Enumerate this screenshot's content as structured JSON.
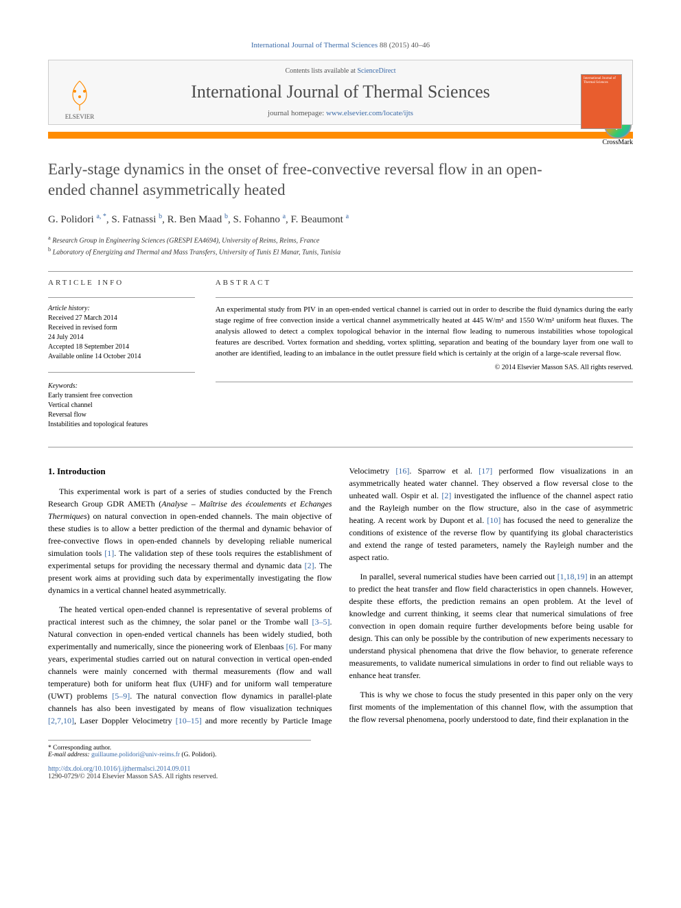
{
  "citation": {
    "journal": "International Journal of Thermal Sciences",
    "vol": "88 (2015) 40–46"
  },
  "banner": {
    "contents_line_pre": "Contents lists available at ",
    "contents_link": "ScienceDirect",
    "journal_title": "International Journal of Thermal Sciences",
    "homepage_pre": "journal homepage: ",
    "homepage_url": "www.elsevier.com/locate/ijts",
    "publisher_name": "ELSEVIER",
    "cover_text": "International Journal of Thermal Sciences"
  },
  "crossmark_label": "CrossMark",
  "article": {
    "title": "Early-stage dynamics in the onset of free-convective reversal flow in an open-ended channel asymmetrically heated",
    "authors_html": "G. Polidori <sup>a, *</sup>, S. Fatnassi <sup>b</sup>, R. Ben Maad <sup>b</sup>, S. Fohanno <sup>a</sup>, F. Beaumont <sup>a</sup>",
    "affiliations": [
      {
        "sup": "a",
        "text": "Research Group in Engineering Sciences (GRESPI EA4694), University of Reims, Reims, France"
      },
      {
        "sup": "b",
        "text": "Laboratory of Energizing and Thermal and Mass Transfers, University of Tunis El Manar, Tunis, Tunisia"
      }
    ]
  },
  "info": {
    "section_label": "ARTICLE INFO",
    "history_label": "Article history:",
    "history": [
      "Received 27 March 2014",
      "Received in revised form",
      "24 July 2014",
      "Accepted 18 September 2014",
      "Available online 14 October 2014"
    ],
    "keywords_label": "Keywords:",
    "keywords": [
      "Early transient free convection",
      "Vertical channel",
      "Reversal flow",
      "Instabilities and topological features"
    ]
  },
  "abstract": {
    "section_label": "ABSTRACT",
    "text": "An experimental study from PIV in an open-ended vertical channel is carried out in order to describe the fluid dynamics during the early stage regime of free convection inside a vertical channel asymmetrically heated at 445 W/m² and 1550 W/m² uniform heat fluxes. The analysis allowed to detect a complex topological behavior in the internal flow leading to numerous instabilities whose topological features are described. Vortex formation and shedding, vortex splitting, separation and beating of the boundary layer from one wall to another are identified, leading to an imbalance in the outlet pressure field which is certainly at the origin of a large-scale reversal flow.",
    "copyright": "© 2014 Elsevier Masson SAS. All rights reserved."
  },
  "body": {
    "heading": "1. Introduction",
    "p1_pre": "This experimental work is part of a series of studies conducted by the French Research Group GDR AMETh (",
    "p1_em": "Analyse – Maîtrise des écoulements et Echanges Thermiques",
    "p1_mid": ") on natural convection in open-ended channels. The main objective of these studies is to allow a better prediction of the thermal and dynamic behavior of free-convective flows in open-ended channels by developing reliable numerical simulation tools ",
    "ref1": "[1]",
    "p1_mid2": ". The validation step of these tools requires the establishment of experimental setups for providing the necessary thermal and dynamic data ",
    "ref2": "[2]",
    "p1_end": ". The present work aims at providing such data by experimentally investigating the flow dynamics in a vertical channel heated asymmetrically.",
    "p2_pre": "The heated vertical open-ended channel is representative of several problems of practical interest such as the chimney, the solar panel or the Trombe wall ",
    "ref3_5": "[3–5]",
    "p2_mid": ". Natural convection in open-ended vertical channels has been widely studied, both experimentally and numerically, since the pioneering work of Elenbaas ",
    "ref6": "[6]",
    "p2_mid2": ". For many years, experimental studies carried out on natural convection in vertical open-ended channels were mainly concerned with thermal measurements (flow and wall temperature) both for uniform heat flux (UHF) and for uniform wall temperature (UWT) problems ",
    "ref5_9": "[5–9]",
    "p2_mid3": ". The natural convection flow dynamics in parallel-plate channels has also been investigated by means of flow visualization techniques ",
    "ref2710": "[2,7,10]",
    "p2_mid4": ", Laser Doppler Velocimetry ",
    "ref10_15": "[10–15]",
    "p2_mid5": " and more recently by Particle Image Velocimetry ",
    "ref16": "[16]",
    "p2_mid6": ". Sparrow et al. ",
    "ref17": "[17]",
    "p2_mid7": " performed flow visualizations in an asymmetrically heated water channel. They observed a flow reversal close to the unheated wall. Ospir et al. ",
    "ref2b": "[2]",
    "p2_mid8": " investigated the influence of the channel aspect ratio and the Rayleigh number on the flow structure, also in the case of asymmetric heating. A recent work by Dupont et al. ",
    "ref10": "[10]",
    "p2_end": " has focused the need to generalize the conditions of existence of the reverse flow by quantifying its global characteristics and extend the range of tested parameters, namely the Rayleigh number and the aspect ratio.",
    "p3_pre": "In parallel, several numerical studies have been carried out ",
    "ref11819": "[1,18,19]",
    "p3_end": " in an attempt to predict the heat transfer and flow field characteristics in open channels. However, despite these efforts, the prediction remains an open problem. At the level of knowledge and current thinking, it seems clear that numerical simulations of free convection in open domain require further developments before being usable for design. This can only be possible by the contribution of new experiments necessary to understand physical phenomena that drive the flow behavior, to generate reference measurements, to validate numerical simulations in order to find out reliable ways to enhance heat transfer.",
    "p4": "This is why we chose to focus the study presented in this paper only on the very first moments of the implementation of this channel flow, with the assumption that the flow reversal phenomena, poorly understood to date, find their explanation in the"
  },
  "footnote": {
    "corr": "* Corresponding author.",
    "email_label": "E-mail address: ",
    "email": "guillaume.polidori@univ-reims.fr",
    "email_name": " (G. Polidori)."
  },
  "footer": {
    "doi": "http://dx.doi.org/10.1016/j.ijthermalsci.2014.09.011",
    "issn": "1290-0729/© 2014 Elsevier Masson SAS. All rights reserved."
  },
  "colors": {
    "link": "#3a6aa8",
    "orange": "#ff8c00",
    "cover": "#e85d2e"
  }
}
